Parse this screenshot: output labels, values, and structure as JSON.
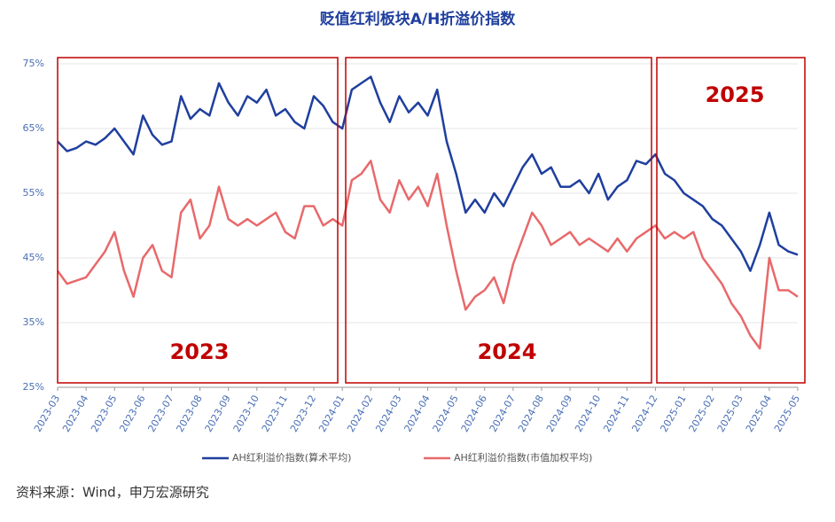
{
  "chart_data": {
    "type": "line",
    "title": "贬值红利板块A/H折溢价指数",
    "categories": [
      "2023-03",
      null,
      null,
      "2023-04",
      null,
      null,
      "2023-05",
      null,
      null,
      "2023-06",
      null,
      null,
      "2023-07",
      null,
      null,
      "2023-08",
      null,
      null,
      "2023-09",
      null,
      null,
      "2023-10",
      null,
      null,
      "2023-11",
      null,
      null,
      "2023-12",
      null,
      null,
      "2024-01",
      null,
      null,
      "2024-02",
      null,
      null,
      "2024-03",
      null,
      null,
      "2024-04",
      null,
      null,
      "2024-05",
      null,
      null,
      "2024-06",
      null,
      null,
      "2024-07",
      null,
      null,
      "2024-08",
      null,
      null,
      "2024-09",
      null,
      null,
      "2024-10",
      null,
      null,
      "2024-11",
      null,
      null,
      "2024-12",
      null,
      null,
      "2025-01",
      null,
      null,
      "2025-02",
      null,
      null,
      "2025-03",
      null,
      null,
      "2025-04",
      null,
      null,
      "2025-05"
    ],
    "series": [
      {
        "name": "AH红利溢价指数(算术平均)",
        "color": "#1f3f9e",
        "values": [
          63,
          61.5,
          62,
          63,
          62.5,
          63.5,
          65,
          63,
          61,
          67,
          64,
          62.5,
          63,
          70,
          66.5,
          68,
          67,
          72,
          69,
          67,
          70,
          69,
          71,
          67,
          68,
          66,
          65,
          70,
          68.5,
          66,
          65,
          71,
          72,
          73,
          69,
          66,
          70,
          67.5,
          69,
          67,
          71,
          63,
          58,
          52,
          54,
          52,
          55,
          53,
          56,
          59,
          61,
          58,
          59,
          56,
          56,
          57,
          55,
          58,
          54,
          56,
          57,
          60,
          59.5,
          61,
          58,
          57,
          55,
          54,
          53,
          51,
          50,
          48,
          46,
          43,
          47,
          52,
          47,
          46,
          45.5
        ]
      },
      {
        "name": "AH红利溢价指数(市值加权平均)",
        "color": "#e8696b",
        "values": [
          43,
          41,
          41.5,
          42,
          44,
          46,
          49,
          43,
          39,
          45,
          47,
          43,
          42,
          52,
          54,
          48,
          50,
          56,
          51,
          50,
          51,
          50,
          51,
          52,
          49,
          48,
          53,
          53,
          50,
          51,
          50,
          57,
          58,
          60,
          54,
          52,
          57,
          54,
          56,
          53,
          58,
          50,
          43,
          37,
          39,
          40,
          42,
          38,
          44,
          48,
          52,
          50,
          47,
          48,
          49,
          47,
          48,
          47,
          46,
          48,
          46,
          48,
          49,
          50,
          48,
          49,
          48,
          49,
          45,
          43,
          41,
          38,
          36,
          33,
          31,
          45,
          40,
          40,
          39
        ]
      }
    ],
    "ylim": [
      25,
      75
    ],
    "yticks": [
      {
        "value": 25,
        "label": "25%"
      },
      {
        "value": 35,
        "label": "35%"
      },
      {
        "value": 45,
        "label": "45%"
      },
      {
        "value": 55,
        "label": "55%"
      },
      {
        "value": 65,
        "label": "65%"
      },
      {
        "value": 75,
        "label": "75%"
      }
    ],
    "grid": true,
    "annotations": [
      {
        "label": "2023"
      },
      {
        "label": "2024"
      },
      {
        "label": "2025"
      }
    ],
    "source": "资料来源：Wind，申万宏源研究"
  }
}
